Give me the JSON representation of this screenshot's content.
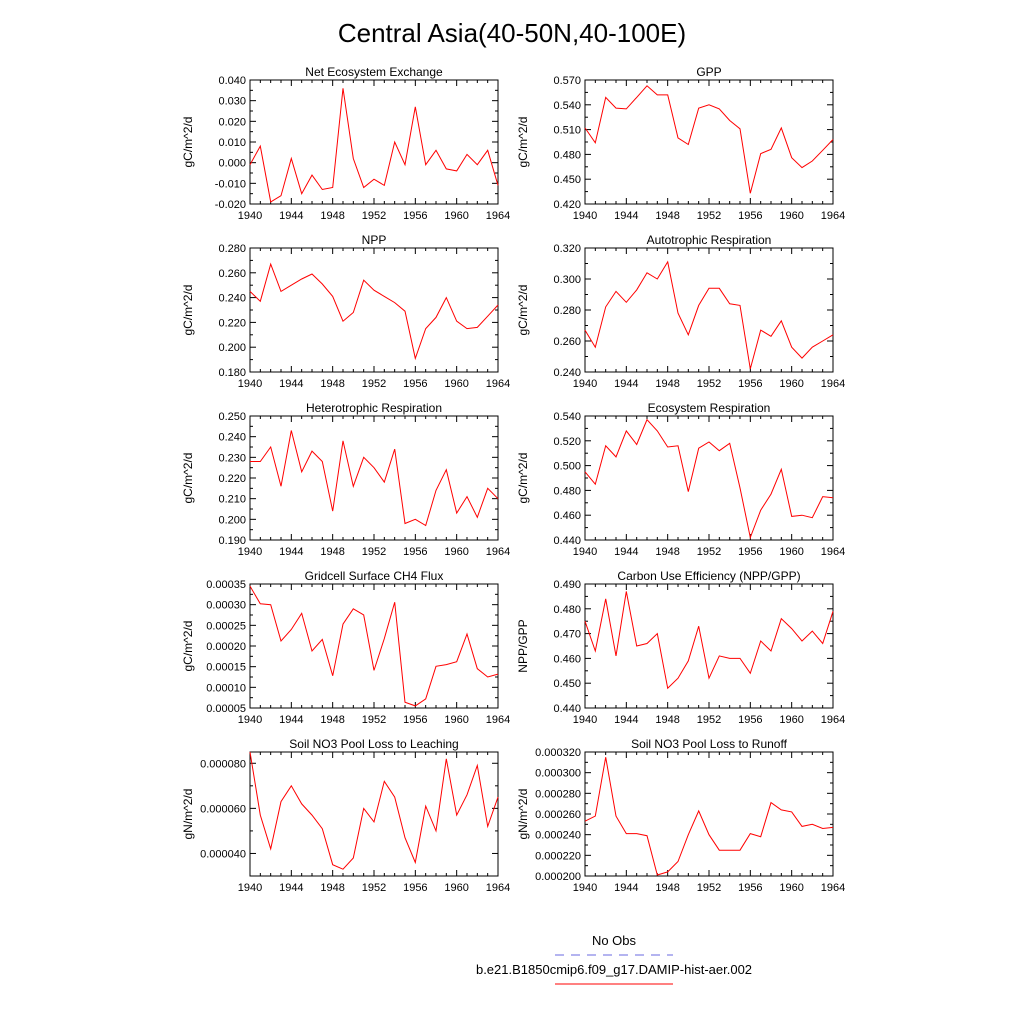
{
  "figure_title": "Central Asia(40-50N,40-100E)",
  "legend": {
    "obs_label": "No Obs",
    "model_label": "b.e21.B1850cmip6.f09_g17.DAMIP-hist-aer.002",
    "obs_color": "#6a6ae0",
    "model_color": "#ff0000"
  },
  "chart_data": [
    {
      "type": "line",
      "title": "Net Ecosystem Exchange",
      "xlabel": "",
      "ylabel": "gC/m^2/d",
      "xlim": [
        1940,
        1964
      ],
      "xticks": [
        "1940",
        "1944",
        "1948",
        "1952",
        "1956",
        "1960",
        "1964"
      ],
      "ylim": [
        -0.02,
        0.04
      ],
      "yticks": [
        "-0.020",
        "-0.010",
        "0.000",
        "0.010",
        "0.020",
        "0.030",
        "0.040"
      ],
      "x": [
        1940,
        1941,
        1942,
        1943,
        1944,
        1945,
        1946,
        1947,
        1948,
        1949,
        1950,
        1951,
        1952,
        1953,
        1954,
        1955,
        1956,
        1957,
        1958,
        1959,
        1960,
        1961,
        1962,
        1963,
        1964
      ],
      "series": [
        {
          "values": [
            -0.001,
            0.008,
            -0.019,
            -0.016,
            0.002,
            -0.015,
            -0.006,
            -0.013,
            -0.012,
            0.036,
            0.002,
            -0.012,
            -0.008,
            -0.011,
            0.01,
            -0.001,
            0.027,
            -0.001,
            0.006,
            -0.003,
            -0.004,
            0.004,
            -0.001,
            0.006,
            -0.011
          ],
          "color": "#ff0000"
        }
      ]
    },
    {
      "type": "line",
      "title": "GPP",
      "xlabel": "",
      "ylabel": "gC/m^2/d",
      "xlim": [
        1940,
        1964
      ],
      "xticks": [
        "1940",
        "1944",
        "1948",
        "1952",
        "1956",
        "1960",
        "1964"
      ],
      "ylim": [
        0.42,
        0.57
      ],
      "yticks": [
        "0.420",
        "0.450",
        "0.480",
        "0.510",
        "0.540",
        "0.570"
      ],
      "x": [
        1940,
        1941,
        1942,
        1943,
        1944,
        1945,
        1946,
        1947,
        1948,
        1949,
        1950,
        1951,
        1952,
        1953,
        1954,
        1955,
        1956,
        1957,
        1958,
        1959,
        1960,
        1961,
        1962,
        1963,
        1964
      ],
      "series": [
        {
          "values": [
            0.512,
            0.494,
            0.549,
            0.536,
            0.535,
            0.549,
            0.563,
            0.552,
            0.552,
            0.5,
            0.492,
            0.536,
            0.54,
            0.535,
            0.521,
            0.511,
            0.433,
            0.481,
            0.486,
            0.512,
            0.476,
            0.464,
            0.472,
            0.485,
            0.498
          ],
          "color": "#ff0000"
        }
      ]
    },
    {
      "type": "line",
      "title": "NPP",
      "xlabel": "",
      "ylabel": "gC/m^2/d",
      "xlim": [
        1940,
        1964
      ],
      "xticks": [
        "1940",
        "1944",
        "1948",
        "1952",
        "1956",
        "1960",
        "1964"
      ],
      "ylim": [
        0.18,
        0.28
      ],
      "yticks": [
        "0.180",
        "0.200",
        "0.220",
        "0.240",
        "0.260",
        "0.280"
      ],
      "x": [
        1940,
        1941,
        1942,
        1943,
        1944,
        1945,
        1946,
        1947,
        1948,
        1949,
        1950,
        1951,
        1952,
        1953,
        1954,
        1955,
        1956,
        1957,
        1958,
        1959,
        1960,
        1961,
        1962,
        1963,
        1964
      ],
      "series": [
        {
          "values": [
            0.245,
            0.237,
            0.267,
            0.245,
            0.25,
            0.255,
            0.259,
            0.251,
            0.241,
            0.221,
            0.228,
            0.254,
            0.246,
            0.241,
            0.236,
            0.229,
            0.191,
            0.215,
            0.224,
            0.24,
            0.221,
            0.215,
            0.216,
            0.225,
            0.234
          ],
          "color": "#ff0000"
        }
      ]
    },
    {
      "type": "line",
      "title": "Autotrophic Respiration",
      "xlabel": "",
      "ylabel": "gC/m^2/d",
      "xlim": [
        1940,
        1964
      ],
      "xticks": [
        "1940",
        "1944",
        "1948",
        "1952",
        "1956",
        "1960",
        "1964"
      ],
      "ylim": [
        0.24,
        0.32
      ],
      "yticks": [
        "0.240",
        "0.260",
        "0.280",
        "0.300",
        "0.320"
      ],
      "x": [
        1940,
        1941,
        1942,
        1943,
        1944,
        1945,
        1946,
        1947,
        1948,
        1949,
        1950,
        1951,
        1952,
        1953,
        1954,
        1955,
        1956,
        1957,
        1958,
        1959,
        1960,
        1961,
        1962,
        1963,
        1964
      ],
      "series": [
        {
          "values": [
            0.267,
            0.256,
            0.282,
            0.292,
            0.285,
            0.293,
            0.304,
            0.3,
            0.311,
            0.278,
            0.264,
            0.283,
            0.294,
            0.294,
            0.284,
            0.283,
            0.242,
            0.267,
            0.263,
            0.273,
            0.256,
            0.249,
            0.256,
            0.26,
            0.264
          ],
          "color": "#ff0000"
        }
      ]
    },
    {
      "type": "line",
      "title": "Heterotrophic Respiration",
      "xlabel": "",
      "ylabel": "gC/m^2/d",
      "xlim": [
        1940,
        1964
      ],
      "xticks": [
        "1940",
        "1944",
        "1948",
        "1952",
        "1956",
        "1960",
        "1964"
      ],
      "ylim": [
        0.19,
        0.25
      ],
      "yticks": [
        "0.190",
        "0.200",
        "0.210",
        "0.220",
        "0.230",
        "0.240",
        "0.250"
      ],
      "x": [
        1940,
        1941,
        1942,
        1943,
        1944,
        1945,
        1946,
        1947,
        1948,
        1949,
        1950,
        1951,
        1952,
        1953,
        1954,
        1955,
        1956,
        1957,
        1958,
        1959,
        1960,
        1961,
        1962,
        1963,
        1964
      ],
      "series": [
        {
          "values": [
            0.228,
            0.228,
            0.235,
            0.216,
            0.243,
            0.223,
            0.233,
            0.228,
            0.204,
            0.238,
            0.216,
            0.23,
            0.225,
            0.218,
            0.234,
            0.198,
            0.2,
            0.197,
            0.214,
            0.224,
            0.203,
            0.211,
            0.201,
            0.215,
            0.21
          ],
          "color": "#ff0000"
        }
      ]
    },
    {
      "type": "line",
      "title": "Ecosystem Respiration",
      "xlabel": "",
      "ylabel": "gC/m^2/d",
      "xlim": [
        1940,
        1964
      ],
      "xticks": [
        "1940",
        "1944",
        "1948",
        "1952",
        "1956",
        "1960",
        "1964"
      ],
      "ylim": [
        0.44,
        0.54
      ],
      "yticks": [
        "0.440",
        "0.460",
        "0.480",
        "0.500",
        "0.520",
        "0.540"
      ],
      "x": [
        1940,
        1941,
        1942,
        1943,
        1944,
        1945,
        1946,
        1947,
        1948,
        1949,
        1950,
        1951,
        1952,
        1953,
        1954,
        1955,
        1956,
        1957,
        1958,
        1959,
        1960,
        1961,
        1962,
        1963,
        1964
      ],
      "series": [
        {
          "values": [
            0.495,
            0.485,
            0.516,
            0.507,
            0.528,
            0.517,
            0.537,
            0.528,
            0.515,
            0.516,
            0.479,
            0.514,
            0.519,
            0.512,
            0.518,
            0.482,
            0.442,
            0.464,
            0.477,
            0.497,
            0.459,
            0.46,
            0.458,
            0.475,
            0.474
          ],
          "color": "#ff0000"
        }
      ]
    },
    {
      "type": "line",
      "title": "Gridcell Surface CH4 Flux",
      "xlabel": "",
      "ylabel": "gC/m^2/d",
      "xlim": [
        1940,
        1964
      ],
      "xticks": [
        "1940",
        "1944",
        "1948",
        "1952",
        "1956",
        "1960",
        "1964"
      ],
      "ylim": [
        5e-05,
        0.00035
      ],
      "yticks": [
        "0.00005",
        "0.00010",
        "0.00015",
        "0.00020",
        "0.00025",
        "0.00030",
        "0.00035"
      ],
      "x": [
        1940,
        1941,
        1942,
        1943,
        1944,
        1945,
        1946,
        1947,
        1948,
        1949,
        1950,
        1951,
        1952,
        1953,
        1954,
        1955,
        1956,
        1957,
        1958,
        1959,
        1960,
        1961,
        1962,
        1963,
        1964
      ],
      "series": [
        {
          "values": [
            0.000345,
            0.000302,
            0.0003,
            0.000212,
            0.00024,
            0.000279,
            0.000188,
            0.000216,
            0.000128,
            0.000253,
            0.00029,
            0.000275,
            0.000141,
            0.000218,
            0.000306,
            6.4e-05,
            5.5e-05,
            7.2e-05,
            0.000151,
            0.000155,
            0.000162,
            0.000229,
            0.000145,
            0.000125,
            0.000132
          ],
          "color": "#ff0000"
        }
      ]
    },
    {
      "type": "line",
      "title": "Carbon Use Efficiency (NPP/GPP)",
      "xlabel": "",
      "ylabel": "NPP/GPP",
      "xlim": [
        1940,
        1964
      ],
      "xticks": [
        "1940",
        "1944",
        "1948",
        "1952",
        "1956",
        "1960",
        "1964"
      ],
      "ylim": [
        0.44,
        0.49
      ],
      "yticks": [
        "0.440",
        "0.450",
        "0.460",
        "0.470",
        "0.480",
        "0.490"
      ],
      "x": [
        1940,
        1941,
        1942,
        1943,
        1944,
        1945,
        1946,
        1947,
        1948,
        1949,
        1950,
        1951,
        1952,
        1953,
        1954,
        1955,
        1956,
        1957,
        1958,
        1959,
        1960,
        1961,
        1962,
        1963,
        1964
      ],
      "series": [
        {
          "values": [
            0.475,
            0.463,
            0.484,
            0.461,
            0.487,
            0.465,
            0.466,
            0.47,
            0.448,
            0.452,
            0.459,
            0.473,
            0.452,
            0.461,
            0.46,
            0.46,
            0.454,
            0.467,
            0.463,
            0.476,
            0.472,
            0.467,
            0.471,
            0.466,
            0.479
          ],
          "color": "#ff0000"
        }
      ]
    },
    {
      "type": "line",
      "title": "Soil NO3 Pool Loss to Leaching",
      "xlabel": "",
      "ylabel": "gN/m^2/d",
      "xlim": [
        1940,
        1964
      ],
      "xticks": [
        "1940",
        "1944",
        "1948",
        "1952",
        "1956",
        "1960",
        "1964"
      ],
      "ylim": [
        3e-05,
        8.5e-05
      ],
      "yticks": [
        "0.000040",
        "0.000060",
        "0.000080"
      ],
      "x": [
        1940,
        1941,
        1942,
        1943,
        1944,
        1945,
        1946,
        1947,
        1948,
        1949,
        1950,
        1951,
        1952,
        1953,
        1954,
        1955,
        1956,
        1957,
        1958,
        1959,
        1960,
        1961,
        1962,
        1963,
        1964
      ],
      "series": [
        {
          "values": [
            8.5e-05,
            5.7e-05,
            4.2e-05,
            6.3e-05,
            7e-05,
            6.2e-05,
            5.7e-05,
            5.1e-05,
            3.5e-05,
            3.3e-05,
            3.8e-05,
            6e-05,
            5.4e-05,
            7.2e-05,
            6.5e-05,
            4.7e-05,
            3.6e-05,
            6.1e-05,
            5e-05,
            8.2e-05,
            5.7e-05,
            6.6e-05,
            7.9e-05,
            5.2e-05,
            6.5e-05
          ],
          "color": "#ff0000"
        }
      ]
    },
    {
      "type": "line",
      "title": "Soil NO3 Pool Loss to Runoff",
      "xlabel": "",
      "ylabel": "gN/m^2/d",
      "xlim": [
        1940,
        1964
      ],
      "xticks": [
        "1940",
        "1944",
        "1948",
        "1952",
        "1956",
        "1960",
        "1964"
      ],
      "ylim": [
        0.0002,
        0.00032
      ],
      "yticks": [
        "0.000200",
        "0.000220",
        "0.000240",
        "0.000260",
        "0.000280",
        "0.000300",
        "0.000320"
      ],
      "x": [
        1940,
        1941,
        1942,
        1943,
        1944,
        1945,
        1946,
        1947,
        1948,
        1949,
        1950,
        1951,
        1952,
        1953,
        1954,
        1955,
        1956,
        1957,
        1958,
        1959,
        1960,
        1961,
        1962,
        1963,
        1964
      ],
      "series": [
        {
          "values": [
            0.000253,
            0.000258,
            0.000315,
            0.000258,
            0.000241,
            0.000241,
            0.000239,
            0.000201,
            0.000204,
            0.000214,
            0.00024,
            0.000263,
            0.00024,
            0.000225,
            0.000225,
            0.000225,
            0.000241,
            0.000238,
            0.000271,
            0.000264,
            0.000262,
            0.000248,
            0.00025,
            0.000246,
            0.000247
          ],
          "color": "#ff0000"
        }
      ]
    }
  ]
}
